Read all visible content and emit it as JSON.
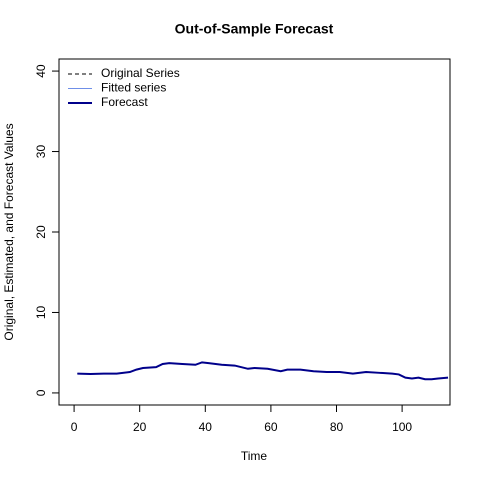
{
  "chart_data": {
    "type": "line",
    "title": "Out-of-Sample Forecast",
    "xlabel": "Time",
    "ylabel": "Original, Estimated, and Forecast Values",
    "x": [
      1,
      5,
      9,
      13,
      17,
      19,
      21,
      25,
      27,
      29,
      33,
      37,
      39,
      41,
      45,
      49,
      53,
      55,
      59,
      63,
      65,
      69,
      73,
      77,
      81,
      85,
      89,
      93,
      97,
      99,
      101,
      103,
      105,
      107,
      109,
      111,
      114
    ],
    "series": [
      {
        "name": "Original Series",
        "color": "#000000",
        "linestyle": "dashed",
        "linewidth": 1,
        "values": [
          2.4,
          2.35,
          2.4,
          2.4,
          2.6,
          2.9,
          3.1,
          3.2,
          3.6,
          3.7,
          3.6,
          3.5,
          3.8,
          3.7,
          3.5,
          3.4,
          3.0,
          3.1,
          3.0,
          2.7,
          2.9,
          2.9,
          2.7,
          2.6,
          2.6,
          2.4,
          2.6,
          2.5,
          2.4,
          2.3,
          1.9,
          1.8,
          1.9,
          1.7,
          1.7,
          1.8,
          1.9
        ]
      },
      {
        "name": "Fitted series",
        "color": "#6f8fe8",
        "linestyle": "solid",
        "linewidth": 1,
        "values": [
          2.4,
          2.35,
          2.4,
          2.4,
          2.6,
          2.9,
          3.1,
          3.2,
          3.6,
          3.7,
          3.6,
          3.5,
          3.8,
          3.7,
          3.5,
          3.4,
          3.0,
          3.1,
          3.0,
          2.7,
          2.9,
          2.9,
          2.7,
          2.6,
          2.6,
          2.4,
          2.6,
          2.5,
          2.4,
          2.3,
          1.9,
          1.8,
          1.9,
          1.7,
          1.7,
          1.8,
          1.9
        ]
      },
      {
        "name": "Forecast",
        "color": "#00008b",
        "linestyle": "solid",
        "linewidth": 2,
        "values": [
          2.4,
          2.35,
          2.4,
          2.4,
          2.6,
          2.9,
          3.1,
          3.2,
          3.6,
          3.7,
          3.6,
          3.5,
          3.8,
          3.7,
          3.5,
          3.4,
          3.0,
          3.1,
          3.0,
          2.7,
          2.9,
          2.9,
          2.7,
          2.6,
          2.6,
          2.4,
          2.6,
          2.5,
          2.4,
          2.3,
          1.9,
          1.8,
          1.9,
          1.7,
          1.7,
          1.8,
          1.9
        ]
      }
    ],
    "xlim": [
      -4.6,
      114.6
    ],
    "xticks": [
      0,
      20,
      40,
      60,
      80,
      100
    ],
    "ylim": [
      -1.5,
      41.5
    ],
    "yticks": [
      0,
      10,
      20,
      30,
      40
    ],
    "legend": "top-left"
  }
}
